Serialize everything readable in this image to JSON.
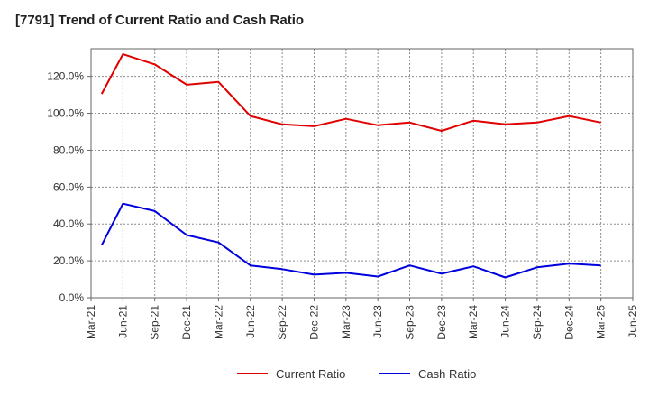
{
  "chart_data": {
    "type": "line",
    "title": "[7791]  Trend of Current Ratio and Cash Ratio",
    "xlabel": "",
    "ylabel": "",
    "ylim": [
      0,
      135
    ],
    "yticks": [
      0,
      20,
      40,
      60,
      80,
      100,
      120
    ],
    "ytick_labels": [
      "0.0%",
      "20.0%",
      "40.0%",
      "60.0%",
      "80.0%",
      "100.0%",
      "120.0%"
    ],
    "xtick_labels": [
      "Mar-21",
      "Jun-21",
      "Sep-21",
      "Dec-21",
      "Mar-22",
      "Jun-22",
      "Sep-22",
      "Dec-22",
      "Mar-23",
      "Jun-23",
      "Sep-23",
      "Dec-23",
      "Mar-24",
      "Jun-24",
      "Sep-24",
      "Dec-24",
      "Mar-25",
      "Jun-25"
    ],
    "x": [
      0.3333,
      1,
      2,
      3,
      4,
      5,
      6,
      7,
      8,
      9,
      10,
      11,
      12,
      13,
      14,
      15,
      16
    ],
    "series": [
      {
        "name": "Current Ratio",
        "color": "#e00000",
        "values": [
          110.5,
          132.0,
          126.5,
          115.5,
          117.0,
          98.5,
          94.0,
          93.0,
          97.0,
          93.5,
          95.0,
          90.5,
          96.0,
          94.0,
          95.0,
          98.5,
          95.0
        ]
      },
      {
        "name": "Cash Ratio",
        "color": "#0000dd",
        "values": [
          28.5,
          51.0,
          47.0,
          34.0,
          30.0,
          17.5,
          15.5,
          12.5,
          13.5,
          11.5,
          17.5,
          13.0,
          17.0,
          11.0,
          16.5,
          18.5,
          17.5
        ]
      }
    ],
    "grid": true,
    "legend": "bottom-center"
  }
}
